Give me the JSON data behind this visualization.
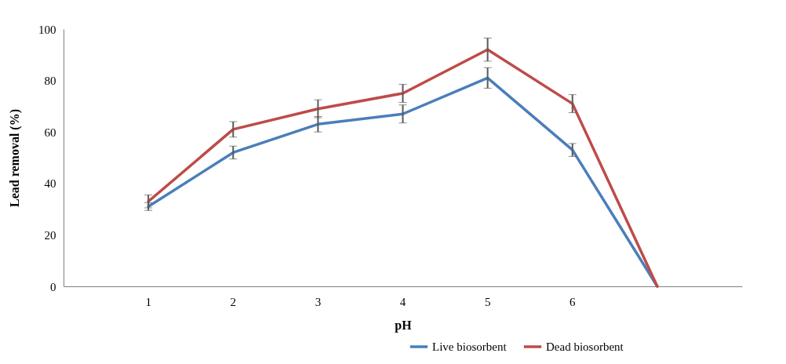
{
  "chart_data": {
    "type": "line",
    "xlabel": "pH",
    "ylabel": "Lead  removal  (%)",
    "categories": [
      "1",
      "2",
      "3",
      "4",
      "5",
      "6",
      null
    ],
    "series": [
      {
        "name": "Live biosorbent",
        "color": "#4a7ebb",
        "values": [
          31,
          52,
          63,
          67,
          81,
          53,
          0
        ],
        "errors": [
          1.5,
          2.5,
          3,
          3.5,
          4,
          2.5,
          null
        ]
      },
      {
        "name": "Dead biosorbent",
        "color": "#be4b48",
        "values": [
          33,
          61,
          69,
          75,
          92,
          71,
          0
        ],
        "errors": [
          2.5,
          3,
          3.5,
          3.5,
          4.5,
          3.5,
          null
        ]
      }
    ],
    "ylim": [
      0,
      100
    ],
    "yticks": [
      0,
      20,
      40,
      60,
      80,
      100
    ],
    "grid": false,
    "legend": "bottom right",
    "marker": "none",
    "line_style": "solid"
  }
}
